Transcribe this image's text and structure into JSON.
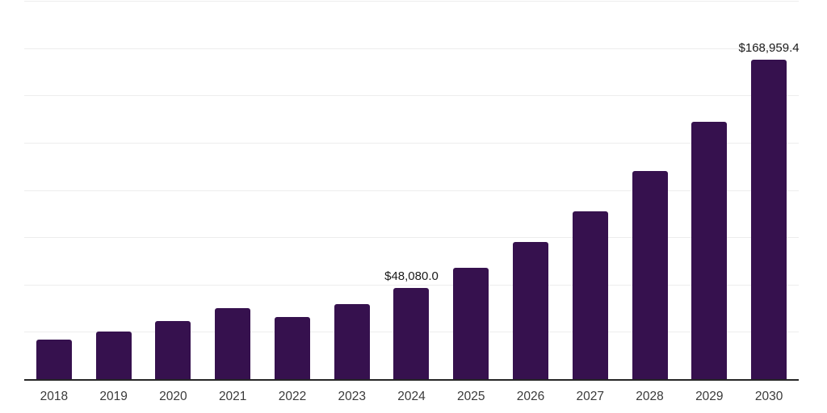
{
  "page": {
    "background": "#ffffff"
  },
  "chart_data": {
    "type": "bar",
    "title": "",
    "xlabel": "",
    "ylabel": "",
    "categories": [
      "2018",
      "2019",
      "2020",
      "2021",
      "2022",
      "2023",
      "2024",
      "2025",
      "2026",
      "2027",
      "2028",
      "2029",
      "2030"
    ],
    "values": [
      21000,
      25200,
      30900,
      37400,
      33000,
      39800,
      48080.0,
      58800,
      72300,
      88900,
      110100,
      136200,
      168959.4
    ],
    "value_labels": [
      "",
      "",
      "",
      "",
      "",
      "",
      "$48,080.0",
      "",
      "",
      "",
      "",
      "",
      "$168,959.4"
    ],
    "labeled_values_display": {
      "2024": "$48,080.0",
      "2030": "$168,959.4"
    },
    "ylim": [
      0,
      200000
    ],
    "gridline_step": 25000,
    "grid": "horizontal-only",
    "y_axis_tick_labels": "none",
    "legend": "none",
    "colors": {
      "bar": "#36114E",
      "gridline": "#ededed",
      "axis_line": "#262626",
      "tick_label": "#3a3a3a",
      "value_label": "#1a1a1a"
    }
  }
}
